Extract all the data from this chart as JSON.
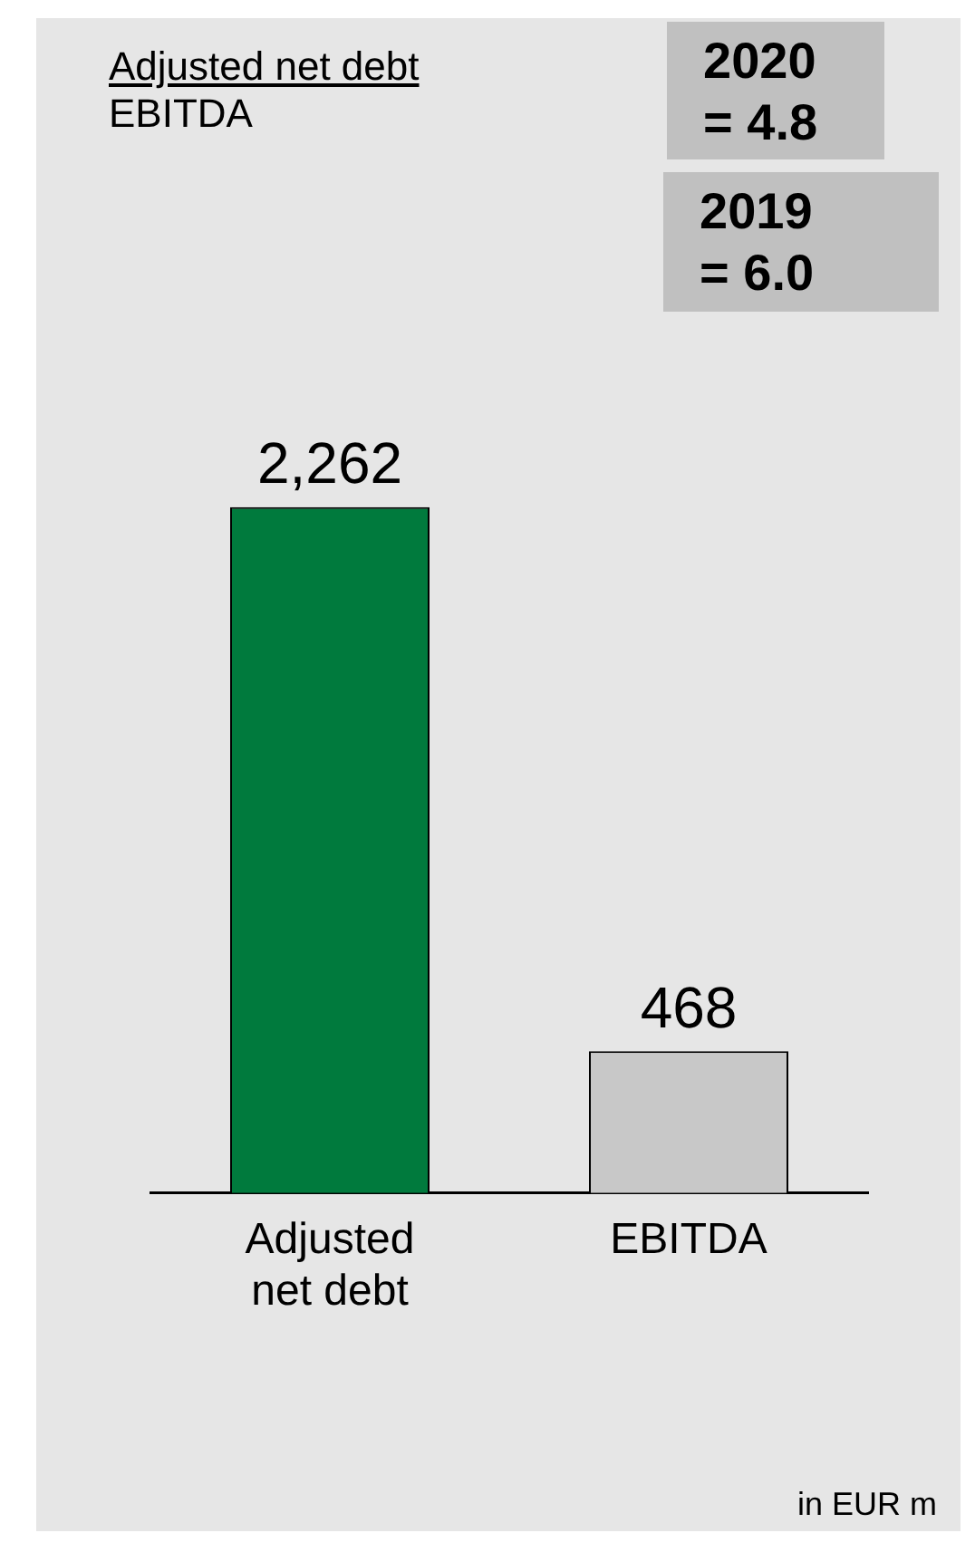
{
  "chart_data": {
    "type": "bar",
    "title": "Adjusted net debt",
    "subtitle": "EBITDA",
    "categories": [
      "Adjusted net debt",
      "EBITDA"
    ],
    "values": [
      2262,
      468
    ],
    "colors": [
      "#007a3d",
      "#c8c8c8"
    ],
    "value_labels": [
      "2,262",
      "468"
    ],
    "grid": false,
    "legend": false,
    "annotations": [
      "2020 = 4.8",
      "2019 = 6.0",
      "in EUR m"
    ]
  }
}
